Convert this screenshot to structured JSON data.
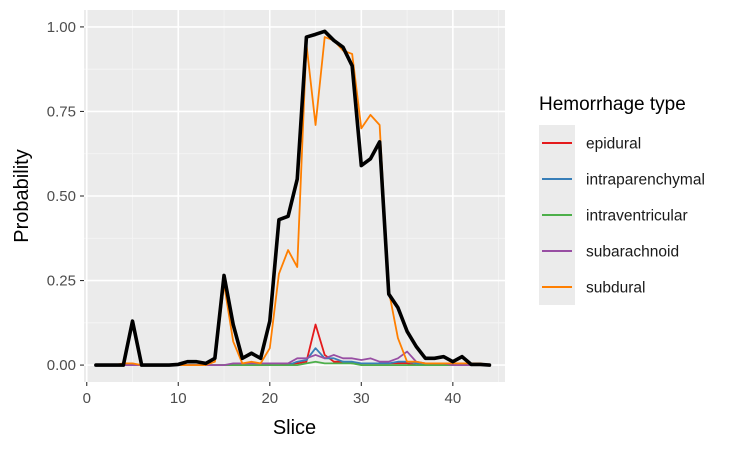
{
  "chart_data": {
    "type": "line",
    "xlabel": "Slice",
    "ylabel": "Probability",
    "xlim": [
      -0.3,
      45.7
    ],
    "ylim": [
      -0.05,
      1.05
    ],
    "x_ticks": [
      0,
      10,
      20,
      30,
      40
    ],
    "y_ticks": [
      0.0,
      0.25,
      0.5,
      0.75,
      1.0
    ],
    "y_tick_labels": [
      "0.00",
      "0.25",
      "0.50",
      "0.75",
      "1.00"
    ],
    "grid": true,
    "background": "#ebebeb",
    "legend": {
      "title": "Hemorrhage type",
      "placement": "right"
    },
    "x": [
      1,
      2,
      3,
      4,
      5,
      6,
      7,
      8,
      9,
      10,
      11,
      12,
      13,
      14,
      15,
      16,
      17,
      18,
      19,
      20,
      21,
      22,
      23,
      24,
      25,
      26,
      27,
      28,
      29,
      30,
      31,
      32,
      33,
      34,
      35,
      36,
      37,
      38,
      39,
      40,
      41,
      42,
      43,
      44
    ],
    "series": [
      {
        "name": "epidural",
        "color": "#e41a1c",
        "values": [
          0,
          0,
          0,
          0,
          0,
          0,
          0,
          0,
          0,
          0,
          0,
          0,
          0,
          0,
          0,
          0,
          0,
          0,
          0,
          0,
          0,
          0.003,
          0.005,
          0.01,
          0.12,
          0.03,
          0.01,
          0.01,
          0.005,
          0.005,
          0.005,
          0.005,
          0.005,
          0.005,
          0.005,
          0,
          0,
          0,
          0,
          0,
          0,
          0,
          0,
          0
        ]
      },
      {
        "name": "intraparenchymal",
        "color": "#377eb8",
        "values": [
          0,
          0,
          0,
          0,
          0,
          0,
          0,
          0,
          0,
          0,
          0,
          0,
          0,
          0,
          0,
          0,
          0,
          0,
          0,
          0,
          0,
          0,
          0.01,
          0.015,
          0.05,
          0.02,
          0.02,
          0.01,
          0.01,
          0.005,
          0.005,
          0.005,
          0.005,
          0.01,
          0.01,
          0.005,
          0,
          0,
          0,
          0,
          0,
          0,
          0,
          0
        ]
      },
      {
        "name": "intraventricular",
        "color": "#4daf4a",
        "values": [
          0,
          0,
          0,
          0,
          0,
          0,
          0,
          0,
          0,
          0,
          0,
          0,
          0,
          0,
          0,
          0,
          0,
          0,
          0,
          0,
          0,
          0,
          0,
          0.005,
          0.01,
          0.005,
          0.005,
          0.005,
          0.005,
          0,
          0,
          0,
          0,
          0,
          0,
          0,
          0,
          0,
          0,
          0,
          0,
          0,
          0,
          0
        ]
      },
      {
        "name": "subarachnoid",
        "color": "#984ea3",
        "values": [
          0,
          0,
          0,
          0,
          0,
          0,
          0,
          0,
          0,
          0,
          0,
          0,
          0,
          0,
          0,
          0.005,
          0.005,
          0.005,
          0.005,
          0.005,
          0.005,
          0.005,
          0.02,
          0.02,
          0.03,
          0.02,
          0.03,
          0.02,
          0.02,
          0.015,
          0.02,
          0.01,
          0.01,
          0.02,
          0.04,
          0.01,
          0.005,
          0.005,
          0.005,
          0,
          0,
          0,
          0,
          0
        ]
      },
      {
        "name": "subdural",
        "color": "#ff7f00",
        "values": [
          0,
          0,
          0,
          0.005,
          0.005,
          0,
          0,
          0,
          0,
          0,
          0,
          0,
          0,
          0.01,
          0.24,
          0.07,
          0.005,
          0.01,
          0.005,
          0.05,
          0.27,
          0.34,
          0.29,
          0.95,
          0.71,
          0.97,
          0.96,
          0.93,
          0.92,
          0.7,
          0.74,
          0.71,
          0.22,
          0.08,
          0.01,
          0.01,
          0.005,
          0.005,
          0.005,
          0.005,
          0.005,
          0.005,
          0.005,
          0
        ]
      },
      {
        "name": "",
        "color": "#000000",
        "values": [
          0,
          0,
          0,
          0,
          0.13,
          0,
          0,
          0,
          0,
          0.002,
          0.01,
          0.01,
          0.005,
          0.02,
          0.265,
          0.12,
          0.02,
          0.035,
          0.02,
          0.13,
          0.43,
          0.44,
          0.55,
          0.97,
          0.978,
          0.987,
          0.96,
          0.94,
          0.885,
          0.59,
          0.61,
          0.66,
          0.21,
          0.17,
          0.1,
          0.055,
          0.02,
          0.02,
          0.025,
          0.01,
          0.025,
          0.002,
          0.002,
          0
        ]
      }
    ]
  }
}
